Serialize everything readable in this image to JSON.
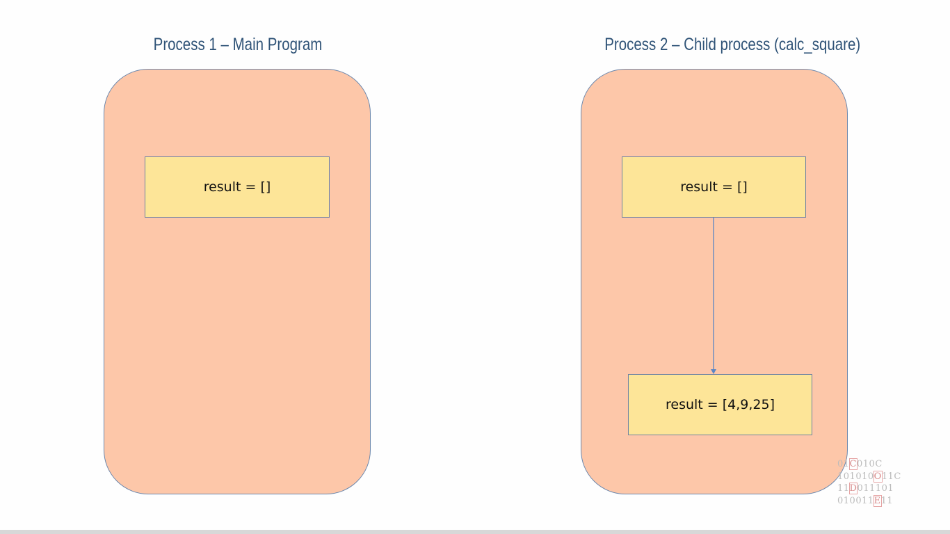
{
  "process1": {
    "title": "Process 1 – Main Program",
    "box_label": "result = []"
  },
  "process2": {
    "title": "Process 2 – Child process (calc_square)",
    "box_top_label": "result = []",
    "box_bottom_label": "result = [4,9,25]"
  },
  "watermark": {
    "lines": [
      "01C010C",
      "1010101O11C",
      "11D011101",
      "010011E11"
    ]
  },
  "colors": {
    "panel_fill": "#fdc7a9",
    "box_fill": "#fde598",
    "title_color": "#2f5377",
    "arrow_color": "#5b86c4"
  }
}
